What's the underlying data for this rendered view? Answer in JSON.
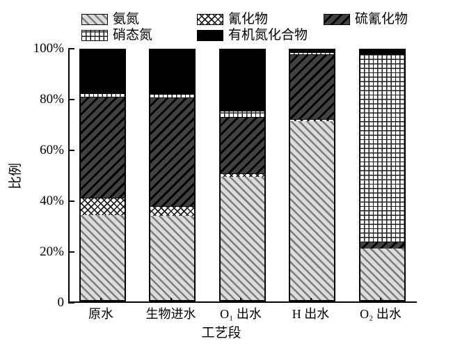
{
  "chart_data": {
    "type": "bar",
    "stacked": true,
    "orientation": "vertical",
    "categories": [
      "原水",
      "生物进水",
      "O₁ 出水",
      "H 出水",
      "O₂ 出水"
    ],
    "series": [
      {
        "name": "氨氮",
        "pattern": "diag-light",
        "values": [
          34.0,
          33.6,
          49.4,
          71.5,
          20.7
        ]
      },
      {
        "name": "氰化物",
        "pattern": "cross",
        "values": [
          7.0,
          3.9,
          1.3,
          1.0,
          0.0
        ]
      },
      {
        "name": "硫氰化物",
        "pattern": "diag-dark",
        "values": [
          40.3,
          43.5,
          22.7,
          25.8,
          2.8
        ]
      },
      {
        "name": "硝态氮",
        "pattern": "grid",
        "values": [
          1.4,
          1.5,
          2.5,
          1.0,
          74.7
        ]
      },
      {
        "name": "有机氮化合物",
        "pattern": "solid",
        "values": [
          17.3,
          17.5,
          24.1,
          0.7,
          1.8
        ]
      }
    ],
    "xlabel": "工艺段",
    "ylabel": "比例",
    "ylim": [
      0,
      100
    ],
    "ytick_labels": [
      "0",
      "20%",
      "40%",
      "60%",
      "80%",
      "100%"
    ],
    "units": "percent of total nitrogen",
    "legend_position": "top",
    "legend_rows": [
      [
        "氨氮",
        "氰化物",
        "硫氰化物"
      ],
      [
        "硝态氮",
        "有机氮化合物"
      ]
    ],
    "grid": false
  },
  "colors": {
    "background": "#ffffff",
    "axis": "#000000",
    "bar_border": "#000000",
    "ammonia_bg": "#dcdcdc",
    "ammonia_stripe": "#7c7c7c",
    "cyanide_bg": "#ffffff",
    "cyanide_stripe": "#1a1a1a",
    "thiocyanate_bg": "#414141",
    "thiocyanate_stripe": "#000000",
    "nitrate_bg": "#ffffff",
    "nitrate_stripe": "#1a1a1a",
    "organic_fill": "#000000"
  }
}
